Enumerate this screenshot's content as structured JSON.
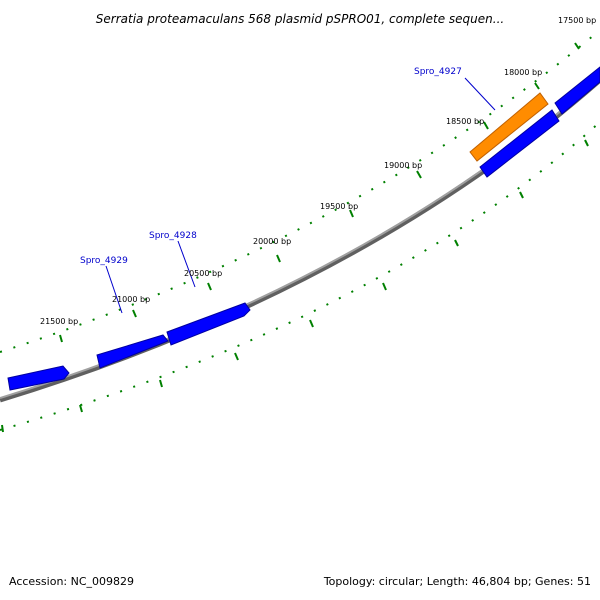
{
  "header": {
    "title": "Serratia proteamaculans 568 plasmid pSPRO01, complete sequen..."
  },
  "footer": {
    "accession": "Accession: NC_009829",
    "summary": "Topology: circular; Length: 46,804 bp; Genes: 51"
  },
  "tick_labels": [
    "17500 bp",
    "18000 bp",
    "18500 bp",
    "19000 bp",
    "19500 bp",
    "20000 bp",
    "20500 bp",
    "21000 bp",
    "21500 bp"
  ],
  "gene_labels": [
    "Spro_4927",
    "Spro_4928",
    "Spro_4929"
  ],
  "colors": {
    "backbone": "#808080",
    "gene_default": "#0000ff",
    "gene_highlight": "#ff8c00",
    "tick": "#008000",
    "gene_label": "#0000cc"
  }
}
